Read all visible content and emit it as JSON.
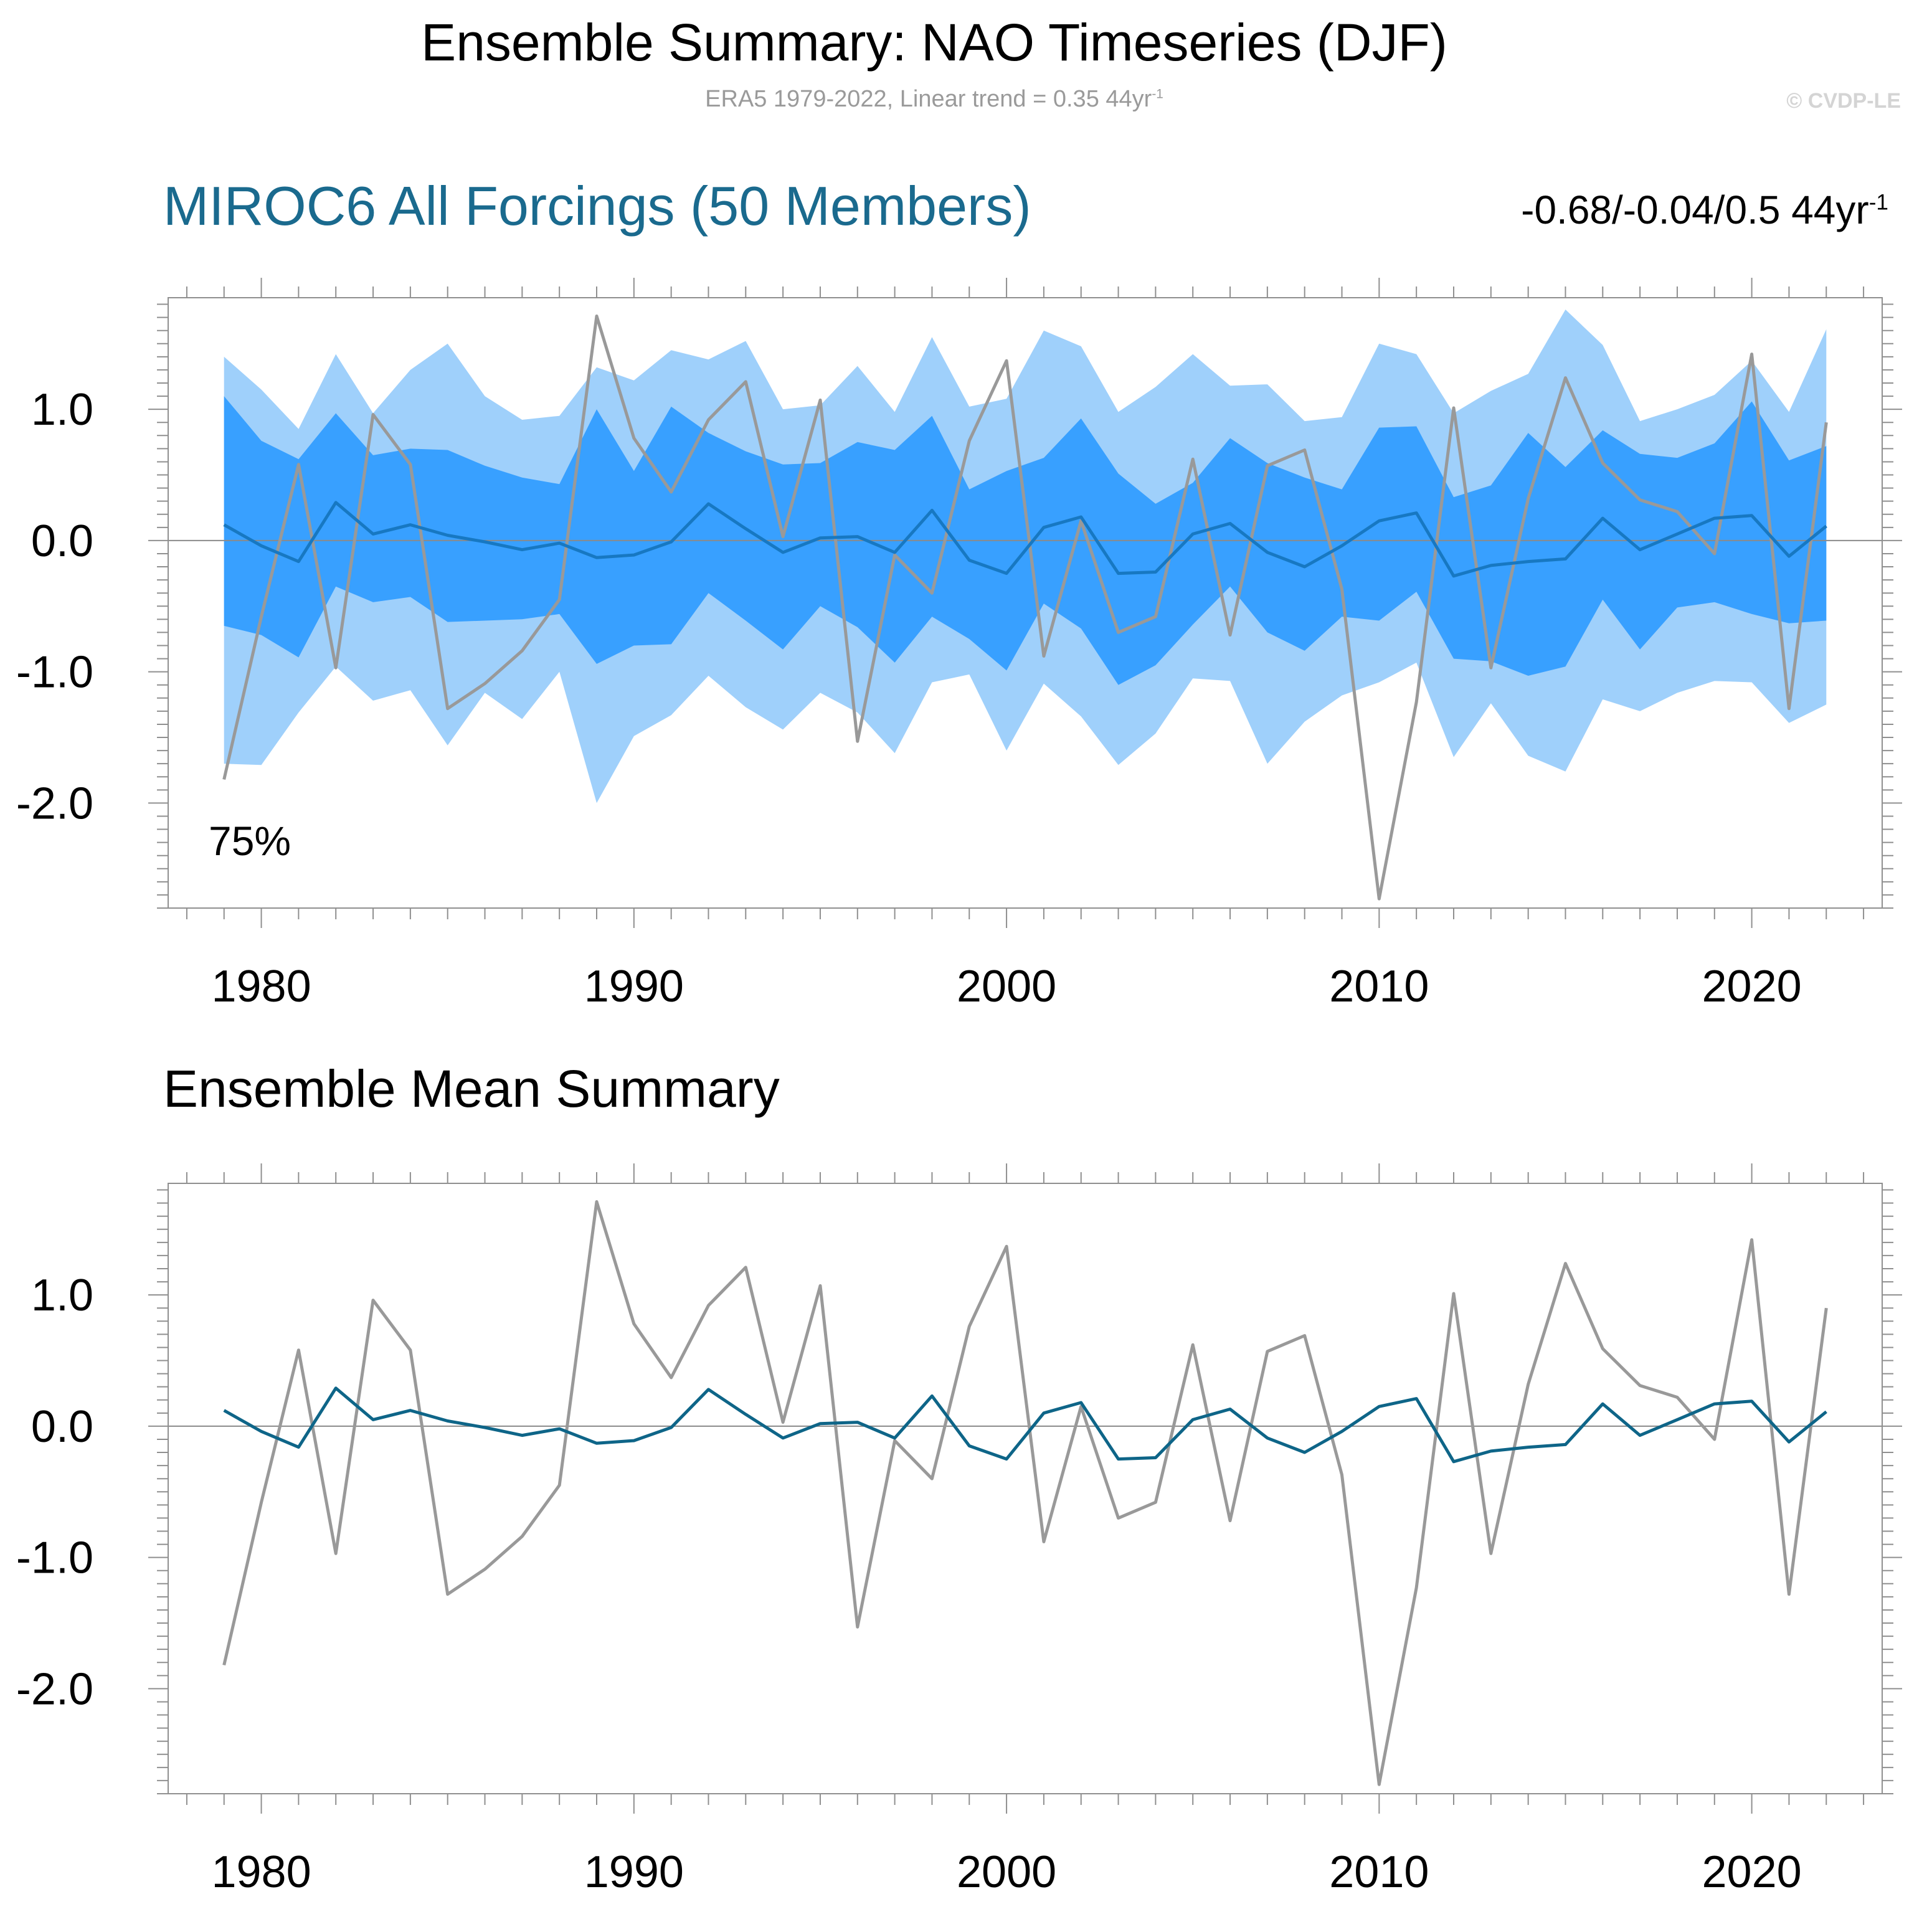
{
  "title": "Ensemble Summary: NAO Timeseries (DJF)",
  "subtitle": {
    "text": "ERA5 1979-2022, Linear trend = 0.35 44yr",
    "superscript": "-1"
  },
  "copyright": "© CVDP-LE",
  "colors": {
    "outer_band": "#9fd0fb",
    "inner_band": "#38a0ff",
    "ensemble_median_panel1": "#1778c2",
    "ensemble_mean_panel2": "#0e6588",
    "observations": "#999999",
    "panel1_title": "#1a6a8e"
  },
  "chart_data": [
    {
      "type": "area",
      "title": "MIROC6 All Forcings (50 Members)",
      "trend_text": "-0.68/-0.04/0.5 44yr",
      "trend_superscript": "-1",
      "percent_label": "75%",
      "xlim": [
        1977.5,
        2023.5
      ],
      "ylim": [
        -2.8,
        1.85
      ],
      "xticks": [
        1980,
        1990,
        2000,
        2010,
        2020
      ],
      "ytick_labels": [
        "1.0",
        "0.0",
        "-1.0",
        "-2.0"
      ],
      "yticks": [
        1.0,
        0.0,
        -1.0,
        -2.0
      ],
      "x": [
        1979,
        1980,
        1981,
        1982,
        1983,
        1984,
        1985,
        1986,
        1987,
        1988,
        1989,
        1990,
        1991,
        1992,
        1993,
        1994,
        1995,
        1996,
        1997,
        1998,
        1999,
        2000,
        2001,
        2002,
        2003,
        2004,
        2005,
        2006,
        2007,
        2008,
        2009,
        2010,
        2011,
        2012,
        2013,
        2014,
        2015,
        2016,
        2017,
        2018,
        2019,
        2020,
        2021,
        2022
      ],
      "series": [
        {
          "name": "outer_upper",
          "values": [
            1.4,
            1.15,
            0.85,
            1.42,
            0.97,
            1.3,
            1.5,
            1.1,
            0.92,
            0.95,
            1.32,
            1.22,
            1.45,
            1.38,
            1.52,
            1.0,
            1.03,
            1.33,
            0.98,
            1.55,
            1.02,
            1.08,
            1.6,
            1.48,
            0.98,
            1.17,
            1.42,
            1.18,
            1.19,
            0.91,
            0.94,
            1.5,
            1.42,
            0.97,
            1.14,
            1.27,
            1.76,
            1.49,
            0.91,
            1.0,
            1.11,
            1.37,
            0.98,
            1.61
          ]
        },
        {
          "name": "outer_lower",
          "values": [
            -1.7,
            -1.71,
            -1.31,
            -0.96,
            -1.22,
            -1.14,
            -1.56,
            -1.16,
            -1.36,
            -1.0,
            -2.0,
            -1.49,
            -1.33,
            -1.03,
            -1.27,
            -1.44,
            -1.16,
            -1.31,
            -1.62,
            -1.08,
            -1.02,
            -1.6,
            -1.09,
            -1.34,
            -1.71,
            -1.47,
            -1.05,
            -1.07,
            -1.7,
            -1.38,
            -1.18,
            -1.08,
            -0.93,
            -1.65,
            -1.24,
            -1.64,
            -1.76,
            -1.21,
            -1.3,
            -1.16,
            -1.07,
            -1.08,
            -1.39,
            -1.25
          ]
        },
        {
          "name": "inner_upper",
          "values": [
            1.1,
            0.76,
            0.62,
            0.97,
            0.65,
            0.7,
            0.69,
            0.57,
            0.48,
            0.43,
            1.0,
            0.53,
            1.02,
            0.82,
            0.68,
            0.58,
            0.59,
            0.75,
            0.69,
            0.95,
            0.39,
            0.53,
            0.63,
            0.93,
            0.51,
            0.28,
            0.44,
            0.78,
            0.59,
            0.48,
            0.39,
            0.86,
            0.87,
            0.33,
            0.42,
            0.82,
            0.56,
            0.84,
            0.66,
            0.63,
            0.74,
            1.06,
            0.61,
            0.72
          ]
        },
        {
          "name": "inner_lower",
          "values": [
            -0.65,
            -0.72,
            -0.89,
            -0.35,
            -0.47,
            -0.43,
            -0.62,
            -0.61,
            -0.6,
            -0.56,
            -0.94,
            -0.8,
            -0.79,
            -0.4,
            -0.61,
            -0.83,
            -0.5,
            -0.66,
            -0.93,
            -0.58,
            -0.75,
            -0.99,
            -0.48,
            -0.67,
            -1.1,
            -0.95,
            -0.64,
            -0.35,
            -0.7,
            -0.84,
            -0.58,
            -0.61,
            -0.39,
            -0.9,
            -0.92,
            -1.03,
            -0.96,
            -0.45,
            -0.83,
            -0.51,
            -0.47,
            -0.56,
            -0.63,
            -0.61
          ]
        },
        {
          "name": "ensemble_median",
          "values": [
            0.12,
            -0.04,
            -0.16,
            0.29,
            0.05,
            0.12,
            0.04,
            -0.01,
            -0.07,
            -0.02,
            -0.13,
            -0.11,
            -0.01,
            0.28,
            0.09,
            -0.09,
            0.02,
            0.03,
            -0.09,
            0.23,
            -0.15,
            -0.25,
            0.1,
            0.18,
            -0.25,
            -0.24,
            0.05,
            0.13,
            -0.09,
            -0.2,
            -0.04,
            0.15,
            0.21,
            -0.27,
            -0.19,
            -0.16,
            -0.14,
            0.17,
            -0.07,
            0.05,
            0.17,
            0.19,
            -0.12,
            0.11
          ]
        },
        {
          "name": "ERA5",
          "values": [
            -1.82,
            -0.58,
            0.58,
            -0.97,
            0.96,
            0.58,
            -1.28,
            -1.09,
            -0.84,
            -0.45,
            1.71,
            0.78,
            0.37,
            0.92,
            1.21,
            0.03,
            1.07,
            -1.53,
            -0.11,
            -0.4,
            0.76,
            1.37,
            -0.88,
            0.15,
            -0.7,
            -0.58,
            0.62,
            -0.72,
            0.57,
            0.69,
            -0.37,
            -2.73,
            -1.23,
            1.01,
            -0.97,
            0.32,
            1.24,
            0.59,
            0.31,
            0.22,
            -0.1,
            1.42,
            -1.28,
            0.9
          ]
        }
      ]
    },
    {
      "type": "line",
      "title": "Ensemble Mean Summary",
      "xlim": [
        1977.5,
        2023.5
      ],
      "ylim": [
        -2.8,
        1.85
      ],
      "xticks": [
        1980,
        1990,
        2000,
        2010,
        2020
      ],
      "ytick_labels": [
        "1.0",
        "0.0",
        "-1.0",
        "-2.0"
      ],
      "yticks": [
        1.0,
        0.0,
        -1.0,
        -2.0
      ],
      "x": [
        1979,
        1980,
        1981,
        1982,
        1983,
        1984,
        1985,
        1986,
        1987,
        1988,
        1989,
        1990,
        1991,
        1992,
        1993,
        1994,
        1995,
        1996,
        1997,
        1998,
        1999,
        2000,
        2001,
        2002,
        2003,
        2004,
        2005,
        2006,
        2007,
        2008,
        2009,
        2010,
        2011,
        2012,
        2013,
        2014,
        2015,
        2016,
        2017,
        2018,
        2019,
        2020,
        2021,
        2022
      ],
      "series": [
        {
          "name": "ERA5",
          "values": [
            -1.82,
            -0.58,
            0.58,
            -0.97,
            0.96,
            0.58,
            -1.28,
            -1.09,
            -0.84,
            -0.45,
            1.71,
            0.78,
            0.37,
            0.92,
            1.21,
            0.03,
            1.07,
            -1.53,
            -0.11,
            -0.4,
            0.76,
            1.37,
            -0.88,
            0.15,
            -0.7,
            -0.58,
            0.62,
            -0.72,
            0.57,
            0.69,
            -0.37,
            -2.73,
            -1.23,
            1.01,
            -0.97,
            0.32,
            1.24,
            0.59,
            0.31,
            0.22,
            -0.1,
            1.42,
            -1.28,
            0.9
          ]
        },
        {
          "name": "ensemble_mean",
          "values": [
            0.12,
            -0.04,
            -0.16,
            0.29,
            0.05,
            0.12,
            0.04,
            -0.01,
            -0.07,
            -0.02,
            -0.13,
            -0.11,
            -0.01,
            0.28,
            0.09,
            -0.09,
            0.02,
            0.03,
            -0.09,
            0.23,
            -0.15,
            -0.25,
            0.1,
            0.18,
            -0.25,
            -0.24,
            0.05,
            0.13,
            -0.09,
            -0.2,
            -0.04,
            0.15,
            0.21,
            -0.27,
            -0.19,
            -0.16,
            -0.14,
            0.17,
            -0.07,
            0.05,
            0.17,
            0.19,
            -0.12,
            0.11
          ]
        }
      ]
    }
  ]
}
